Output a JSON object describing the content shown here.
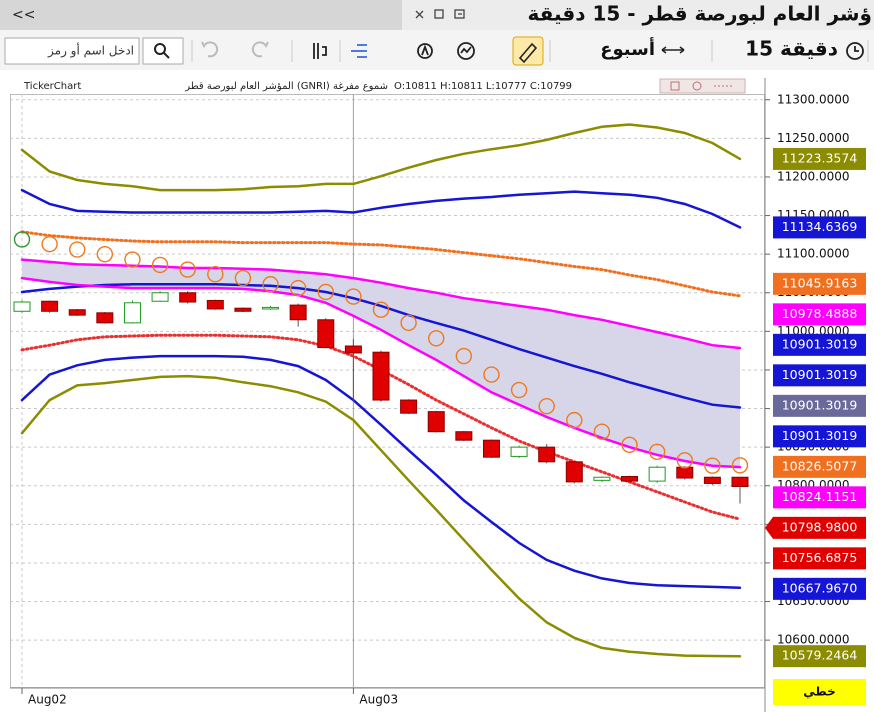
{
  "header": {
    "back": "<<",
    "title": "ؤشر العام لبورصة قطر - 15 دقيقة"
  },
  "toolbar": {
    "search_placeholder": "ادخل اسم أو رمز",
    "period": "أسبوع",
    "interval": "15 دقيقة"
  },
  "chart_data": {
    "type": "candlestick",
    "info": {
      "source": "TickerChart",
      "name": "المؤشر العام لبورصة قطر (GNRI) شموع مفرغة",
      "ohlc": "O:10811 H:10811 L:10777 C:10799"
    },
    "categories": [
      "Aug02",
      null,
      null,
      null,
      null,
      null,
      null,
      null,
      null,
      null,
      null,
      null,
      "Aug03",
      null,
      null,
      null,
      null,
      null,
      null,
      null,
      null,
      null,
      null,
      null,
      null,
      null,
      null
    ],
    "open": [
      11026,
      11039,
      11028,
      11024,
      11011,
      11039,
      11050,
      11040,
      11030,
      11029,
      11034,
      11015,
      10981,
      10973,
      10911,
      10896,
      10870,
      10859,
      10838,
      10850,
      10831,
      10807,
      10812,
      10806,
      10824,
      10811,
      10811
    ],
    "high": [
      11040,
      11040,
      11029,
      11025,
      11040,
      11052,
      11052,
      11041,
      11031,
      11033,
      11036,
      11017,
      10990,
      10975,
      10912,
      10897,
      10871,
      10860,
      10852,
      10854,
      10832,
      10812,
      10813,
      10826,
      10825,
      10812,
      10811
    ],
    "low": [
      11024,
      11024,
      11020,
      11010,
      11010,
      11038,
      11036,
      11028,
      11025,
      11028,
      11006,
      10978,
      10909,
      10909,
      10893,
      10869,
      10858,
      10836,
      10836,
      10829,
      10803,
      10805,
      10804,
      10804,
      10808,
      10801,
      10777
    ],
    "close": [
      11038,
      11026,
      11021,
      11011,
      11037,
      11050,
      11038,
      11029,
      11026,
      11031,
      11015,
      10979,
      10972,
      10911,
      10894,
      10870,
      10859,
      10837,
      10850,
      10831,
      10805,
      10811,
      10806,
      10824,
      10810,
      10803,
      10799
    ],
    "up_color": "#1f9a1f",
    "down_color": "#e00000",
    "band_fill": "#d6d6e8",
    "series": [
      {
        "color": "#8c8c00",
        "style": "solid",
        "values": [
          11235,
          11207,
          11196,
          11191,
          11188,
          11183,
          11183,
          11183,
          11184,
          11187,
          11188,
          11191,
          11191,
          11201,
          11212,
          11222,
          11230,
          11236,
          11241,
          11248,
          11257,
          11265,
          11268,
          11264,
          11257,
          11244,
          11223.3574
        ]
      },
      {
        "color": "#1515d5",
        "style": "solid",
        "values": [
          11183,
          11165,
          11156,
          11155,
          11154,
          11154,
          11154,
          11154,
          11154,
          11154,
          11155,
          11156,
          11154,
          11160,
          11165,
          11169,
          11172,
          11174,
          11177,
          11179,
          11181,
          11179,
          11177,
          11173,
          11165,
          11152,
          11134.6369
        ]
      },
      {
        "color": "#f07020",
        "style": "dotted",
        "values": [
          11129,
          11124,
          11121,
          11119,
          11117,
          11116,
          11116,
          11116,
          11115,
          11115,
          11115,
          11115,
          11113,
          11112,
          11109,
          11106,
          11102,
          11098,
          11094,
          11089,
          11084,
          11080,
          11073,
          11067,
          11059,
          11051,
          11045.9163
        ]
      },
      {
        "color": "#ff00ff",
        "style": "solid",
        "band": "upper",
        "values": [
          11093,
          11090,
          11087,
          11086,
          11085,
          11084,
          11082,
          11082,
          11081,
          11080,
          11077,
          11074,
          11069,
          11063,
          11056,
          11050,
          11043,
          11038,
          11033,
          11028,
          11021,
          11015,
          11007,
          10999,
          10991,
          10982,
          10978.4888
        ]
      },
      {
        "color": "#1515d5",
        "style": "solid",
        "values": [
          11051,
          11055,
          11058,
          11060,
          11061,
          11061,
          11061,
          11061,
          11060,
          11059,
          11056,
          11051,
          11043,
          11033,
          11021,
          11011,
          11001,
          10989,
          10977,
          10966,
          10955,
          10945,
          10934,
          10924,
          10914,
          10905,
          10901.3019
        ]
      },
      {
        "color": "#ff00ff",
        "style": "solid",
        "band": "lower",
        "values": [
          11069,
          11064,
          11060,
          11058,
          11056,
          11056,
          11056,
          11056,
          11055,
          11052,
          11047,
          11037,
          11020,
          11002,
          10982,
          10963,
          10942,
          10921,
          10905,
          10889,
          10875,
          10862,
          10850,
          10840,
          10832,
          10826,
          10824.1151
        ]
      },
      {
        "color": "#e83030",
        "style": "dotted",
        "values": [
          10976,
          10982,
          10989,
          10993,
          10994,
          10995,
          10995,
          10995,
          10994,
          10993,
          10989,
          10981,
          10968,
          10950,
          10931,
          10911,
          10893,
          10875,
          10858,
          10844,
          10831,
          10818,
          10805,
          10792,
          10779,
          10766,
          10756.6875
        ]
      },
      {
        "color": "#1515d5",
        "style": "solid",
        "values": [
          10911,
          10944,
          10956,
          10963,
          10966,
          10968,
          10968,
          10968,
          10967,
          10963,
          10955,
          10937,
          10911,
          10879,
          10846,
          10814,
          10781,
          10753,
          10726,
          10704,
          10690,
          10680,
          10674,
          10671,
          10670,
          10669,
          10667.967
        ]
      },
      {
        "color": "#8c8c00",
        "style": "solid",
        "values": [
          10868,
          10911,
          10930,
          10933,
          10937,
          10941,
          10942,
          10940,
          10934,
          10929,
          10921,
          10909,
          10885,
          10846,
          10807,
          10769,
          10730,
          10691,
          10654,
          10623,
          10603,
          10590,
          10585,
          10582,
          10580,
          10579.5,
          10579.2464
        ]
      },
      {
        "color": "#f07820",
        "style": "circles",
        "point_colors": [
          "#2a9a2a",
          "#f07820",
          "#f07820",
          "#f07820",
          "#f07820",
          "#f07820",
          "#f07820",
          "#f07820",
          "#f07820",
          "#f07820",
          "#f07820",
          "#f07820",
          "#f07820",
          "#f07820",
          "#f07820",
          "#f07820",
          "#f07820",
          "#f07820",
          "#f07820",
          "#f07820",
          "#f07820",
          "#f07820",
          "#f07820",
          "#f07820",
          "#f07820",
          "#f07820",
          "#f07820"
        ],
        "values": [
          11119,
          11113,
          11106,
          11100,
          11093,
          11086,
          11080,
          11074,
          11069,
          11061,
          11056,
          11051,
          11045,
          11028,
          11011,
          10991,
          10968,
          10944,
          10924,
          10903,
          10885,
          10870,
          10853,
          10844,
          10833,
          10826,
          10826.5077
        ]
      }
    ],
    "price_labels": [
      {
        "value": 11223.3574,
        "color": "#8c8c00"
      },
      {
        "value": 11134.6369,
        "color": "#1515d5"
      },
      {
        "value": 11045.9163,
        "color": "#f07020"
      },
      {
        "value": 10978.4888,
        "color": "#ff00ff"
      },
      {
        "value": 10901.3019,
        "color": "#1515d5"
      },
      {
        "value": 10901.3019,
        "color": "#1515d5"
      },
      {
        "value": 10901.3019,
        "color": "#6a6a9a"
      },
      {
        "value": 10901.3019,
        "color": "#1515d5"
      },
      {
        "value": 10826.5077,
        "color": "#f07020"
      },
      {
        "value": 10824.1151,
        "color": "#ff00ff"
      },
      {
        "value": 10798.98,
        "label": "10798.9800",
        "color": "#e00000",
        "pointer": true
      },
      {
        "value": 10756.6875,
        "color": "#e00000"
      },
      {
        "value": 10667.967,
        "label": "10667.9670",
        "color": "#1515d5"
      },
      {
        "value": 10579.2464,
        "color": "#8c8c00"
      }
    ],
    "scale_label": "خطي",
    "ylim": [
      10538,
      11323
    ],
    "yticks": [
      {
        "value": 11300,
        "label": "11300.0000"
      },
      {
        "value": 11250,
        "label": "11250.0000"
      },
      {
        "value": 11200,
        "label": "11200.0000"
      },
      {
        "value": 11150,
        "label": "11150.0000"
      },
      {
        "value": 11100,
        "label": "11100.0000"
      },
      {
        "value": 11050,
        "label": "11050.0000"
      },
      {
        "value": 11000,
        "label": "11000.0000"
      },
      {
        "value": 10950,
        "label": "10950.0000"
      },
      {
        "value": 10900,
        "label": "10900.0000"
      },
      {
        "value": 10850,
        "label": "10850.0000"
      },
      {
        "value": 10800,
        "label": "10800.0000"
      },
      {
        "value": 10750,
        "label": "10750.0000"
      },
      {
        "value": 10700,
        "label": "10700.0000"
      },
      {
        "value": 10650,
        "label": "10650.0000"
      },
      {
        "value": 10600,
        "label": "10600.0000"
      }
    ],
    "grid": true
  }
}
